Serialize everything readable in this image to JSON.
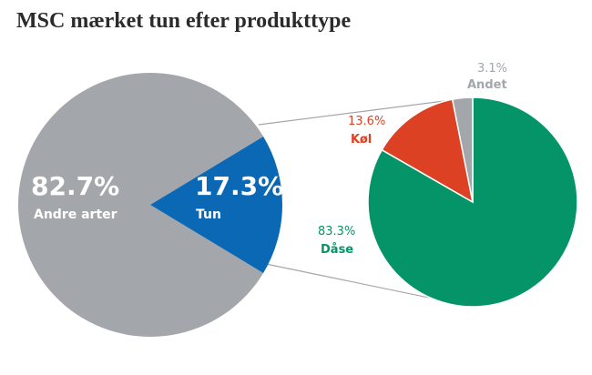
{
  "title": "MSC mærket tun efter produkttype",
  "colors": {
    "grey": "#a3a6ab",
    "blue": "#0a68b4",
    "green": "#049467",
    "red": "#dd4124",
    "connector": "#a3a6ab"
  },
  "chart_data": [
    {
      "type": "pie",
      "slices": [
        {
          "label": "Andre arter",
          "value": 82.7,
          "value_label": "82.7%"
        },
        {
          "label": "Tun",
          "value": 17.3,
          "value_label": "17.3%"
        }
      ]
    },
    {
      "type": "pie",
      "slices": [
        {
          "label": "Dåse",
          "value": 83.3,
          "value_label": "83.3%"
        },
        {
          "label": "Køl",
          "value": 13.6,
          "value_label": "13.6%"
        },
        {
          "label": "Andet",
          "value": 3.1,
          "value_label": "3.1%"
        }
      ]
    }
  ]
}
